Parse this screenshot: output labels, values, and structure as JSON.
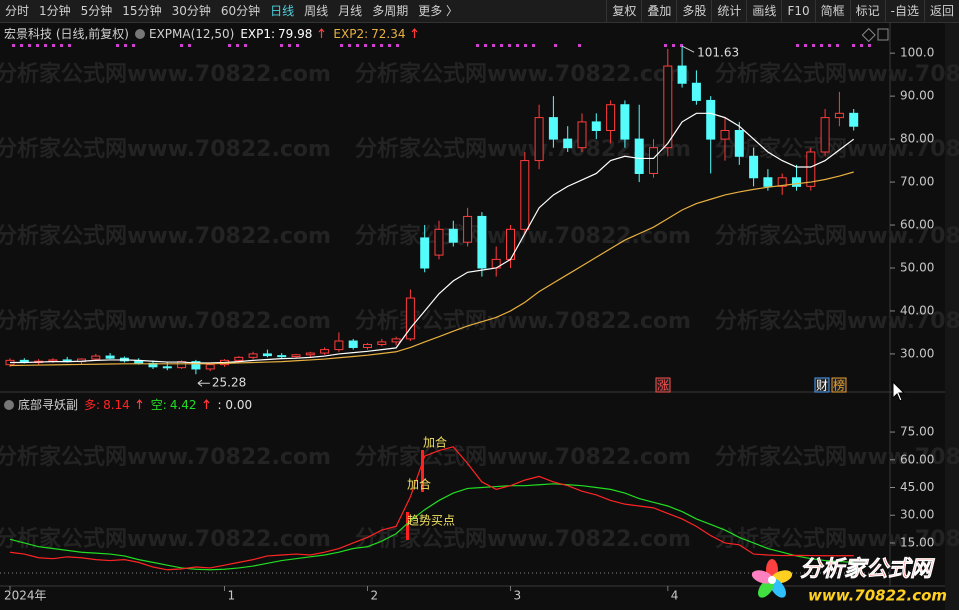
{
  "toolbar": {
    "left": [
      "分时",
      "1分钟",
      "5分钟",
      "15分钟",
      "30分钟",
      "60分钟",
      "日线",
      "周线",
      "月线",
      "多周期",
      "更多 〉"
    ],
    "active": 6,
    "right": [
      "复权",
      "叠加",
      "多股",
      "统计",
      "画线",
      "F10",
      "简框",
      "标记",
      "-自选",
      "返回"
    ]
  },
  "watermark": "分析家公式网www.70822.com",
  "logo": {
    "name": "分析家公式网",
    "url": "www.70822.com"
  },
  "chart_data": [
    {
      "type": "candlestick",
      "title": "宏景科技 (日线,前复权)",
      "indicator": "EXPMA(12,50)",
      "categories": [
        "2024年",
        null,
        null,
        null,
        null,
        null,
        null,
        null,
        null,
        null,
        null,
        null,
        null,
        null,
        null,
        "1",
        null,
        null,
        null,
        null,
        null,
        null,
        null,
        null,
        null,
        "2",
        null,
        null,
        null,
        null,
        null,
        null,
        null,
        null,
        null,
        "3",
        null,
        null,
        null,
        null,
        null,
        null,
        null,
        null,
        null,
        null,
        "4",
        null,
        null,
        null,
        null,
        null,
        null,
        null,
        null,
        null,
        null,
        null,
        null,
        null
      ],
      "series": [
        {
          "name": "宏景科技",
          "up_color": "#ff3c3c",
          "down_color": "#54fcfc",
          "open": [
            27.5,
            28.5,
            28,
            28.3,
            28.6,
            28.2,
            28.8,
            29.5,
            29,
            28.4,
            27.8,
            27,
            26.8,
            28.2,
            26.5,
            27.5,
            28.5,
            29.2,
            30,
            29.6,
            29.4,
            29.8,
            30.2,
            31,
            33,
            31.5,
            32.2,
            32.8,
            33.5,
            57,
            53,
            59,
            56,
            62,
            50,
            52,
            59,
            75,
            85,
            80,
            78,
            84,
            82,
            88,
            80,
            72,
            78,
            97,
            93,
            89,
            80,
            82,
            76,
            71,
            69,
            71,
            69,
            77,
            85,
            86
          ],
          "high": [
            29,
            29,
            28.8,
            29,
            29.3,
            29,
            30,
            30.2,
            29.4,
            29,
            28.5,
            28,
            28.5,
            28.6,
            27.8,
            28.8,
            29.5,
            30.5,
            31,
            30.2,
            30,
            30.5,
            31.5,
            35,
            33.5,
            32.5,
            33.5,
            34,
            45,
            60,
            61,
            61,
            64,
            63,
            55,
            60,
            77,
            88,
            90,
            83,
            86,
            86,
            89,
            89,
            88,
            80,
            101,
            101.63,
            96,
            90,
            85,
            84,
            78,
            73,
            72,
            74,
            78,
            87,
            91,
            87
          ],
          "low": [
            27,
            27.8,
            27.5,
            27.9,
            28,
            27.6,
            28.5,
            28.8,
            28,
            27.5,
            26.5,
            26.2,
            26.5,
            25.28,
            26,
            27,
            28,
            28.8,
            29.2,
            28.8,
            28.9,
            29.2,
            29.8,
            30.5,
            31,
            31,
            31.8,
            32,
            33,
            49,
            52,
            55,
            55,
            48,
            48,
            50,
            58,
            73,
            78,
            77,
            77,
            80,
            79,
            78,
            70,
            71,
            76,
            92,
            88,
            72,
            75,
            74,
            69,
            68,
            67,
            68,
            68,
            76,
            83,
            82
          ],
          "close": [
            28.5,
            28,
            28.3,
            28.6,
            28.2,
            28.8,
            29.5,
            29,
            28.4,
            27.8,
            27,
            26.8,
            28.2,
            26.5,
            27.5,
            28.5,
            29.2,
            30,
            29.6,
            29.4,
            29.8,
            30.2,
            31,
            33,
            31.5,
            32.2,
            32.8,
            33.5,
            43,
            50,
            59,
            56,
            62,
            50,
            52,
            59,
            75,
            85,
            80,
            78,
            84,
            82,
            88,
            80,
            72,
            78,
            97,
            93,
            89,
            80,
            82,
            76,
            71,
            69,
            71,
            69,
            77,
            85,
            86,
            83
          ]
        },
        {
          "name": "EXP1:",
          "color": "#ffffff",
          "values": [
            28,
            28,
            28.1,
            28.2,
            28.2,
            28.3,
            28.5,
            28.6,
            28.6,
            28.5,
            28.3,
            28.1,
            28.1,
            27.9,
            27.9,
            28,
            28.2,
            28.5,
            28.7,
            28.9,
            29,
            29.2,
            29.5,
            30,
            30.3,
            30.6,
            31,
            31.4,
            36,
            40,
            44,
            47,
            49,
            49.5,
            50,
            52,
            58,
            64,
            67,
            69,
            70.5,
            72,
            75,
            76,
            75.5,
            75.5,
            79,
            84,
            86,
            86,
            85,
            83,
            80,
            77,
            75,
            73.5,
            73.5,
            75,
            77.5,
            79.98
          ]
        },
        {
          "name": "EXP2:",
          "color": "#e8b040",
          "values": [
            27.3,
            27.35,
            27.4,
            27.45,
            27.5,
            27.55,
            27.6,
            27.65,
            27.7,
            27.7,
            27.7,
            27.7,
            27.7,
            27.7,
            27.7,
            27.8,
            27.9,
            28,
            28.1,
            28.2,
            28.4,
            28.6,
            28.8,
            29.1,
            29.4,
            29.7,
            30.1,
            30.5,
            31.5,
            32.8,
            34,
            35.3,
            36.5,
            37.5,
            38.5,
            40,
            42,
            44.5,
            46.5,
            48.5,
            50.5,
            52.5,
            54.5,
            56.5,
            58,
            59.5,
            61.5,
            63.5,
            65,
            66,
            67,
            67.7,
            68.3,
            68.8,
            69.2,
            69.6,
            70,
            70.6,
            71.4,
            72.34
          ]
        }
      ],
      "ylim": [
        21.6,
        102.6
      ],
      "yticks": [
        {
          "value": 30,
          "label": "30.00"
        },
        {
          "value": 40,
          "label": "40.00"
        },
        {
          "value": 50,
          "label": "50.00"
        },
        {
          "value": 60,
          "label": "60.00"
        },
        {
          "value": 70,
          "label": "70.00"
        },
        {
          "value": 80,
          "label": "80.00"
        },
        {
          "value": 90,
          "label": "90.00"
        },
        {
          "value": 100,
          "label": "100.0"
        }
      ],
      "markers": [
        "涨",
        "财",
        "榜"
      ]
    },
    {
      "type": "line",
      "title": "底部寻妖副",
      "series": [
        {
          "name": "多:",
          "color": "#ff2424",
          "values": [
            10,
            9,
            7,
            6.5,
            7.5,
            7,
            6,
            5.5,
            6,
            4.5,
            2,
            0.5,
            1,
            2,
            1.5,
            3,
            4.5,
            6,
            8,
            8.5,
            9,
            8.5,
            10,
            12,
            15,
            18,
            22,
            24,
            40,
            62,
            65,
            67,
            58,
            48,
            44,
            46,
            49,
            51,
            48,
            46,
            43,
            41,
            38,
            36,
            35,
            34,
            31,
            28,
            24,
            19,
            15,
            14,
            9,
            8.5,
            8.2,
            8.3,
            8.2,
            8.1,
            8.1,
            8.14
          ]
        },
        {
          "name": "空:",
          "color": "#22dd22",
          "values": [
            17,
            15,
            13,
            12,
            11,
            10,
            9.5,
            9,
            8,
            6,
            4.5,
            3,
            1.5,
            0.8,
            0.5,
            0.8,
            1.5,
            2.5,
            4,
            5.5,
            6.5,
            7.5,
            8.5,
            10,
            12,
            13,
            16,
            20,
            27,
            33,
            38,
            42,
            44.5,
            45,
            45.5,
            46,
            46,
            46.5,
            47,
            46.5,
            46,
            45,
            44,
            42,
            39,
            37,
            35,
            32,
            28,
            25,
            22,
            18,
            15,
            12,
            10,
            8,
            6.5,
            5.5,
            5,
            4.42
          ]
        }
      ],
      "legend_note": ": 0.00",
      "ylim": [
        -0.7,
        82.6
      ],
      "yticks": [
        {
          "value": 15,
          "label": "15.00"
        },
        {
          "value": 30,
          "label": "30.00"
        },
        {
          "value": 45,
          "label": "45.00"
        },
        {
          "value": 60,
          "label": "60.00"
        },
        {
          "value": 75,
          "label": "75.00"
        }
      ],
      "annotations": [
        "加合",
        "加合",
        "趋势买点"
      ]
    }
  ]
}
